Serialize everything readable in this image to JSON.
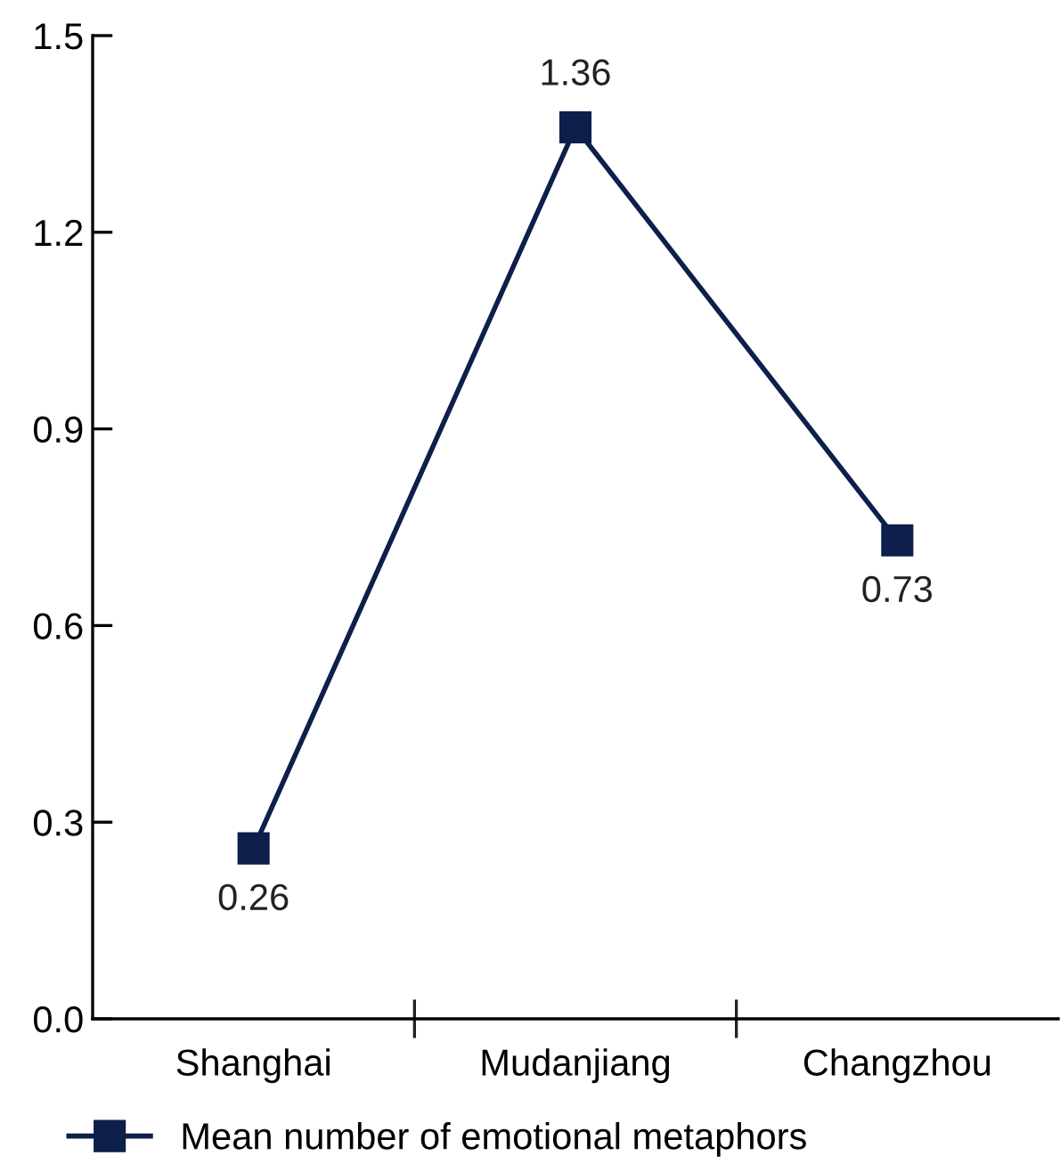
{
  "chart_data": {
    "type": "line",
    "categories": [
      "Shanghai",
      "Mudanjiang",
      "Changzhou"
    ],
    "series": [
      {
        "name": "Mean number of emotional metaphors",
        "color": "#0d1f4a",
        "values": [
          0.26,
          1.36,
          0.73
        ]
      }
    ],
    "ylim": [
      0,
      1.5
    ],
    "yticks": [
      {
        "value": 0,
        "label": "0.0"
      },
      0.3,
      0.6,
      0.9,
      1.2,
      {
        "value": 1.5,
        "label": "1.5"
      }
    ],
    "marker": "square",
    "line_style": "solid",
    "data_labels": true,
    "legend": "bottom",
    "grid": false
  }
}
